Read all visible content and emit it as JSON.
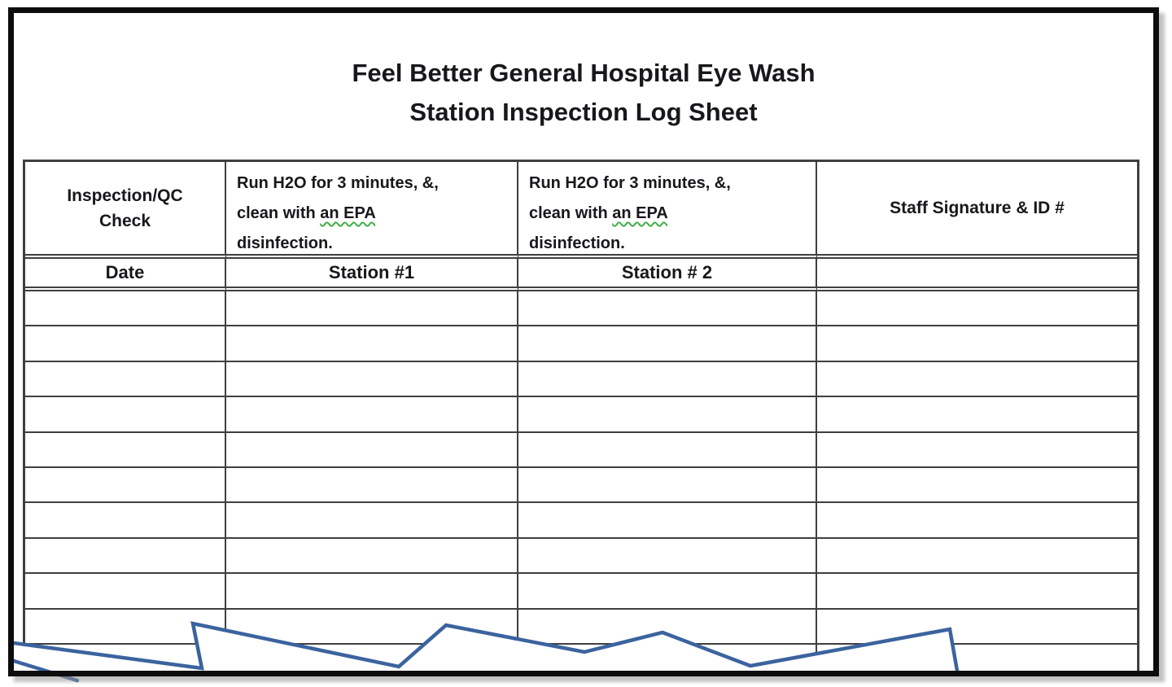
{
  "title": {
    "line1": "Feel Better General Hospital Eye Wash",
    "line2": "Station Inspection Log Sheet"
  },
  "table": {
    "header_row": {
      "inspection": "Inspection/QC Check",
      "station1": {
        "pre": "Run H2O for 3 minutes, &, clean with ",
        "marked": "an EPA",
        "post": " disinfection."
      },
      "station2": {
        "pre": "Run H2O for 3 minutes, &, clean with ",
        "marked": "an EPA",
        "post": " disinfection."
      },
      "signature": "Staff Signature & ID #"
    },
    "subheader_row": {
      "date": "Date",
      "station1": "Station #1",
      "station2": "Station # 2",
      "signature": ""
    },
    "empty_row_count": 11,
    "column_count": 4
  },
  "colors": {
    "grid": "#3f3f3f",
    "frame": "#0d0d0d",
    "text": "#17171c",
    "torn_edge_blue": "#3b639e",
    "grammar_squiggle_green": "#3faf46"
  }
}
